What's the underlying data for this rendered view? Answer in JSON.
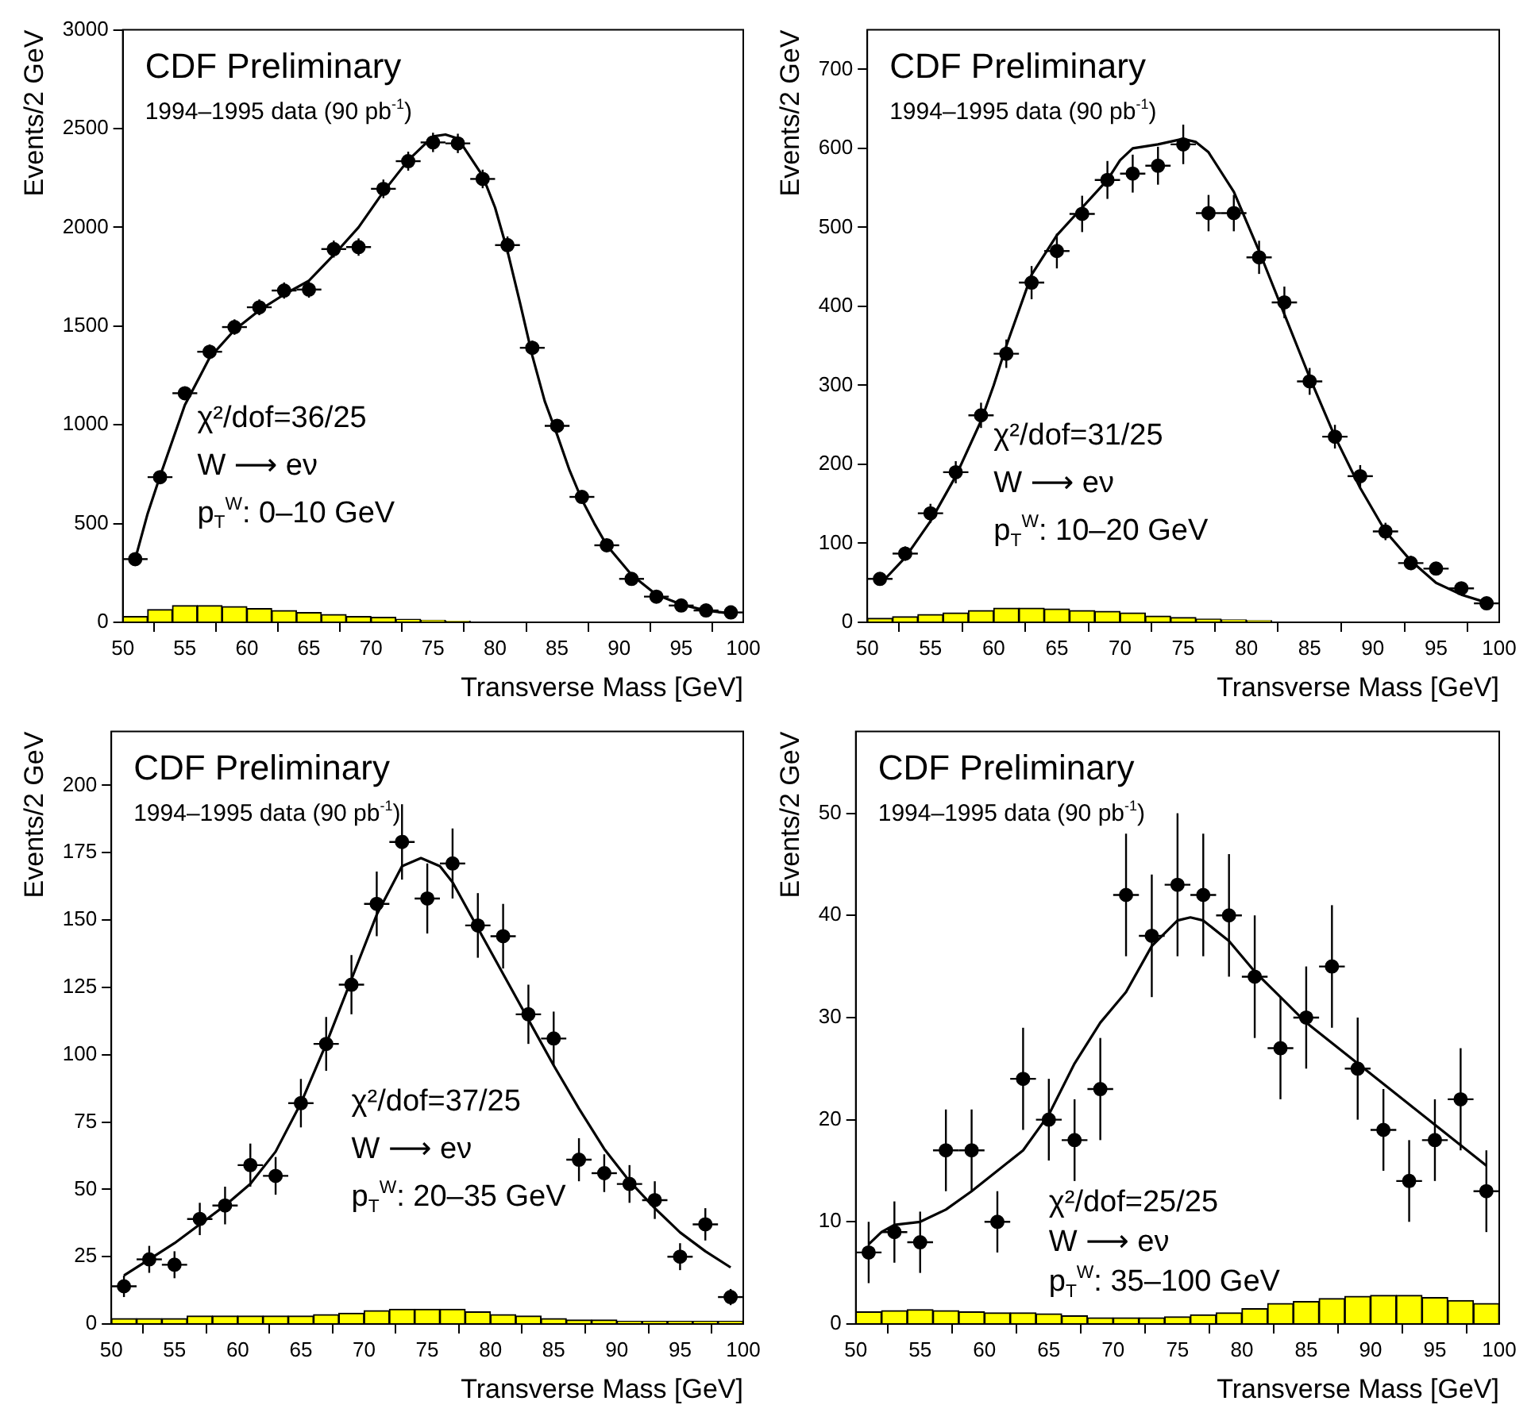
{
  "chart_data": [
    {
      "type": "scatter",
      "title": "CDF Preliminary",
      "subtitle": "1994–1995 data (90 pb$^{-1}$)",
      "xlabel": "Transverse Mass [GeV]",
      "ylabel": "Events/2 GeV",
      "annotations": [
        "χ²/dof=36/25",
        "W ⟶ eν",
        "p$_{T}$$^{W}$: 0–10 GeV"
      ],
      "xlim": [
        50,
        100
      ],
      "xticks": [
        50,
        55,
        60,
        65,
        70,
        75,
        80,
        85,
        90,
        95,
        100
      ],
      "ylim": [
        0,
        3000
      ],
      "yticks": [
        0,
        500,
        1000,
        1500,
        2000,
        2500,
        3000
      ],
      "series": [
        {
          "type": "bar",
          "color": "#ffff00",
          "x": [
            51,
            53,
            55,
            57,
            59,
            61,
            63,
            65,
            67,
            69,
            71,
            73,
            75,
            77,
            79,
            81,
            83,
            85,
            87,
            89,
            91,
            93,
            95,
            97,
            99
          ],
          "values": [
            30,
            65,
            85,
            85,
            80,
            70,
            60,
            50,
            40,
            30,
            25,
            15,
            10,
            5,
            0,
            0,
            0,
            0,
            0,
            0,
            0,
            0,
            0,
            0,
            0
          ]
        },
        {
          "marker": "circle",
          "color": "#000000",
          "x": [
            51,
            53,
            55,
            57,
            59,
            61,
            63,
            65,
            67,
            69,
            71,
            73,
            75,
            77,
            79,
            81,
            83,
            85,
            87,
            89,
            91,
            93,
            95,
            97,
            99
          ],
          "values": [
            320,
            735,
            1160,
            1370,
            1495,
            1595,
            1680,
            1685,
            1890,
            1900,
            2195,
            2335,
            2430,
            2425,
            2245,
            1910,
            1390,
            995,
            635,
            390,
            220,
            130,
            85,
            60,
            50
          ],
          "errors": [
            18,
            27,
            34,
            37,
            39,
            40,
            41,
            41,
            43,
            44,
            47,
            48,
            49,
            49,
            47,
            44,
            37,
            32,
            25,
            20,
            15,
            11,
            9,
            8,
            7
          ],
          "xerrors": [
            1,
            1,
            1,
            1,
            1,
            1,
            1,
            1,
            1,
            1,
            1,
            1,
            1,
            1,
            1,
            1,
            1,
            1,
            1,
            1,
            1,
            1,
            1,
            1,
            1
          ]
        },
        {
          "type": "line",
          "color": "#000000",
          "x": [
            51,
            52,
            53,
            55,
            57,
            59,
            61,
            63,
            65,
            67,
            69,
            71,
            73,
            75,
            76,
            77,
            79,
            80,
            81,
            82,
            83,
            84,
            85,
            86,
            87,
            88,
            89,
            91,
            93,
            95,
            97,
            99
          ],
          "values": [
            320,
            550,
            740,
            1100,
            1340,
            1480,
            1580,
            1660,
            1730,
            1860,
            2000,
            2180,
            2340,
            2460,
            2470,
            2450,
            2260,
            2100,
            1880,
            1620,
            1350,
            1120,
            950,
            770,
            620,
            500,
            390,
            240,
            140,
            90,
            60,
            45
          ]
        }
      ]
    },
    {
      "type": "scatter",
      "title": "CDF Preliminary",
      "subtitle": "1994–1995 data (90 pb$^{-1}$)",
      "xlabel": "Transverse Mass [GeV]",
      "ylabel": "Events/2 GeV",
      "annotations": [
        "χ²/dof=31/25",
        "W ⟶ eν",
        "p$_{T}$$^{W}$: 10–20 GeV"
      ],
      "xlim": [
        50,
        100
      ],
      "xticks": [
        50,
        55,
        60,
        65,
        70,
        75,
        80,
        85,
        90,
        95,
        100
      ],
      "ylim": [
        0,
        750
      ],
      "yticks": [
        0,
        100,
        200,
        300,
        400,
        500,
        600,
        700
      ],
      "series": [
        {
          "type": "bar",
          "color": "#ffff00",
          "x": [
            51,
            53,
            55,
            57,
            59,
            61,
            63,
            65,
            67,
            69,
            71,
            73,
            75,
            77,
            79,
            81,
            83,
            85,
            87,
            89,
            91,
            93,
            95,
            97,
            99
          ],
          "values": [
            5,
            7,
            10,
            12,
            15,
            18,
            18,
            17,
            15,
            14,
            12,
            8,
            6,
            4,
            3,
            2,
            0,
            0,
            0,
            0,
            0,
            0,
            0,
            0,
            0
          ]
        },
        {
          "marker": "circle",
          "color": "#000000",
          "x": [
            51,
            53,
            55,
            57,
            59,
            61,
            63,
            65,
            67,
            69,
            71,
            73,
            75,
            77,
            79,
            81,
            83,
            85,
            87,
            89,
            91,
            93,
            95,
            97,
            99
          ],
          "values": [
            55,
            87,
            138,
            190,
            262,
            340,
            430,
            470,
            517,
            560,
            568,
            578,
            605,
            518,
            518,
            462,
            405,
            305,
            235,
            185,
            115,
            75,
            68,
            43,
            24
          ],
          "errors": [
            7,
            9,
            12,
            14,
            16,
            18,
            21,
            22,
            23,
            24,
            24,
            24,
            25,
            23,
            23,
            21,
            20,
            17,
            15,
            14,
            11,
            9,
            8,
            7,
            5
          ],
          "xerrors": [
            1,
            1,
            1,
            1,
            1,
            1,
            1,
            1,
            1,
            1,
            1,
            1,
            1,
            1,
            1,
            1,
            1,
            1,
            1,
            1,
            1,
            1,
            1,
            1,
            1
          ]
        },
        {
          "type": "line",
          "color": "#000000",
          "x": [
            51,
            53,
            55,
            57,
            59,
            60,
            61,
            63,
            65,
            67,
            69,
            70,
            71,
            73,
            75,
            76,
            77,
            79,
            81,
            83,
            85,
            87,
            89,
            91,
            93,
            95,
            97,
            99
          ],
          "values": [
            48,
            82,
            128,
            185,
            255,
            300,
            350,
            440,
            490,
            525,
            560,
            585,
            600,
            605,
            612,
            608,
            595,
            545,
            470,
            390,
            310,
            235,
            170,
            115,
            78,
            50,
            35,
            25
          ]
        }
      ]
    },
    {
      "type": "scatter",
      "title": "CDF Preliminary",
      "subtitle": "1994–1995 data (90 pb$^{-1}$)",
      "xlabel": "Transverse Mass [GeV]",
      "ylabel": "Events/2 GeV",
      "annotations": [
        "χ²/dof=37/25",
        "W ⟶ eν",
        "p$_{T}$$^{W}$: 20–35 GeV"
      ],
      "xlim": [
        50,
        100
      ],
      "xticks": [
        50,
        55,
        60,
        65,
        70,
        75,
        80,
        85,
        90,
        95,
        100
      ],
      "ylim": [
        0,
        220
      ],
      "yticks": [
        0,
        25,
        50,
        75,
        100,
        125,
        150,
        175,
        200
      ],
      "series": [
        {
          "type": "bar",
          "color": "#ffff00",
          "x": [
            51,
            53,
            55,
            57,
            59,
            61,
            63,
            65,
            67,
            69,
            71,
            73,
            75,
            77,
            79,
            81,
            83,
            85,
            87,
            89,
            91,
            93,
            95,
            97,
            99
          ],
          "values": [
            2,
            2,
            2,
            3,
            3,
            3,
            3,
            3,
            3.5,
            4,
            5,
            5.5,
            5.5,
            5.5,
            4.5,
            3.5,
            3,
            2,
            1.5,
            1.5,
            1,
            1,
            1,
            1,
            1
          ]
        },
        {
          "marker": "circle",
          "color": "#000000",
          "x": [
            51,
            53,
            55,
            57,
            59,
            61,
            63,
            65,
            67,
            69,
            71,
            73,
            75,
            77,
            79,
            81,
            83,
            85,
            87,
            89,
            91,
            93,
            95,
            97,
            99
          ],
          "values": [
            14,
            24,
            22,
            39,
            44,
            59,
            55,
            82,
            104,
            126,
            156,
            179,
            158,
            171,
            148,
            144,
            115,
            106,
            61,
            56,
            52,
            46,
            25,
            37,
            10
          ],
          "errors": [
            4,
            5,
            5,
            6,
            7,
            8,
            7,
            9,
            10,
            11,
            12,
            14,
            13,
            13,
            12,
            12,
            11,
            10,
            8,
            7,
            7,
            7,
            5,
            6,
            3
          ],
          "xerrors": [
            1,
            1,
            1,
            1,
            1,
            1,
            1,
            1,
            1,
            1,
            1,
            1,
            1,
            1,
            1,
            1,
            1,
            1,
            1,
            1,
            1,
            1,
            1,
            1,
            1
          ]
        },
        {
          "type": "line",
          "color": "#000000",
          "x": [
            51,
            53,
            55,
            57,
            59,
            61,
            63,
            65,
            67,
            69,
            71,
            73,
            74.5,
            76,
            77,
            79,
            81,
            83,
            85,
            87,
            89,
            91,
            93,
            95,
            97,
            99
          ],
          "values": [
            18,
            24,
            30,
            37,
            44,
            52,
            64,
            82,
            104,
            128,
            152,
            170,
            173,
            170,
            164,
            147,
            130,
            113,
            96,
            80,
            65,
            53,
            43,
            34,
            27,
            21
          ]
        }
      ]
    },
    {
      "type": "scatter",
      "title": "CDF Preliminary",
      "subtitle": "1994–1995 data (90 pb$^{-1}$)",
      "xlabel": "Transverse Mass [GeV]",
      "ylabel": "Events/2 GeV",
      "annotations": [
        "χ²/dof=25/25",
        "W ⟶ eν",
        "p$_{T}$$^{W}$: 35–100 GeV"
      ],
      "xlim": [
        50,
        100
      ],
      "xticks": [
        50,
        55,
        60,
        65,
        70,
        75,
        80,
        85,
        90,
        95,
        100
      ],
      "ylim": [
        0,
        58
      ],
      "yticks": [
        0,
        10,
        20,
        30,
        40,
        50
      ],
      "series": [
        {
          "type": "bar",
          "color": "#ffff00",
          "x": [
            51,
            53,
            55,
            57,
            59,
            61,
            63,
            65,
            67,
            69,
            71,
            73,
            75,
            77,
            79,
            81,
            83,
            85,
            87,
            89,
            91,
            93,
            95,
            97,
            99
          ],
          "values": [
            1.2,
            1.3,
            1.4,
            1.3,
            1.2,
            1.1,
            1.1,
            1,
            0.8,
            0.6,
            0.6,
            0.6,
            0.7,
            0.9,
            1.1,
            1.5,
            2,
            2.2,
            2.5,
            2.7,
            2.8,
            2.8,
            2.6,
            2.3,
            2
          ]
        },
        {
          "marker": "circle",
          "color": "#000000",
          "x": [
            51,
            53,
            55,
            57,
            59,
            61,
            63,
            65,
            67,
            69,
            71,
            73,
            75,
            77,
            79,
            81,
            83,
            85,
            87,
            89,
            91,
            93,
            95,
            97,
            99
          ],
          "values": [
            7,
            9,
            8,
            17,
            17,
            10,
            24,
            20,
            18,
            23,
            42,
            38,
            43,
            42,
            40,
            34,
            27,
            30,
            35,
            25,
            19,
            14,
            18,
            22,
            13
          ],
          "errors": [
            3,
            3,
            3,
            4,
            4,
            3,
            5,
            4,
            4,
            5,
            6,
            6,
            7,
            6,
            6,
            6,
            5,
            5,
            6,
            5,
            4,
            4,
            4,
            5,
            4
          ],
          "xerrors": [
            1,
            1,
            1,
            1,
            1,
            1,
            1,
            1,
            1,
            1,
            1,
            1,
            1,
            1,
            1,
            1,
            1,
            1,
            1,
            1,
            1,
            1,
            1,
            1,
            1
          ]
        },
        {
          "type": "line",
          "color": "#000000",
          "x": [
            51,
            52,
            53,
            55,
            57,
            59,
            61,
            63,
            65,
            67,
            69,
            71,
            73,
            75,
            76,
            77,
            79,
            81,
            83,
            85,
            87,
            89,
            91,
            93,
            95,
            97,
            99
          ],
          "values": [
            7.8,
            9,
            9.7,
            10,
            11.2,
            13,
            15,
            17,
            20.5,
            25.5,
            29.5,
            32.5,
            37,
            39.5,
            39.8,
            39.5,
            37.5,
            34.5,
            32,
            29.5,
            27.5,
            25.5,
            23.5,
            21.5,
            19.5,
            17.5,
            15.5
          ]
        }
      ]
    }
  ]
}
